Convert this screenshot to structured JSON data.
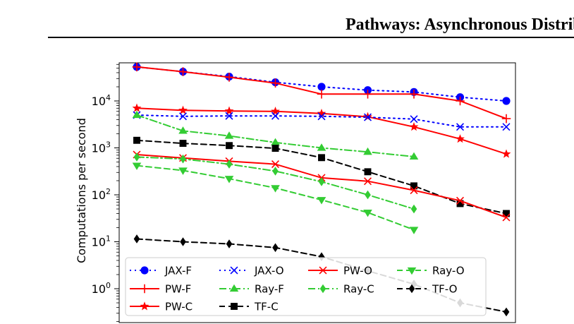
{
  "header": {
    "title": "Pathways: Asynchronous Distributed Dataflow for ML"
  },
  "chart_data": {
    "type": "line",
    "title": "",
    "xlabel": "",
    "ylabel": "Computations per second",
    "yscale": "log",
    "ylim": [
      0.3,
      100000
    ],
    "yticks": [
      {
        "value": 1,
        "base": "10",
        "exp": "0"
      },
      {
        "value": 10,
        "base": "10",
        "exp": "1"
      },
      {
        "value": 100,
        "base": "10",
        "exp": "2"
      },
      {
        "value": 1000,
        "base": "10",
        "exp": "3"
      },
      {
        "value": 10000,
        "base": "10",
        "exp": "4"
      }
    ],
    "grid": false,
    "legend_position": "bottom-left",
    "series": [
      {
        "name": "JAX-F",
        "color": "#0000ff",
        "dash": "dotted",
        "marker": "circle",
        "values": [
          53000,
          42000,
          33000,
          25000,
          20000,
          17000,
          15500,
          12000,
          10000
        ]
      },
      {
        "name": "PW-F",
        "color": "#ff0000",
        "dash": "solid",
        "marker": "plus",
        "values": [
          53000,
          42000,
          32000,
          24000,
          14000,
          14000,
          14000,
          10000,
          4200
        ]
      },
      {
        "name": "PW-C",
        "color": "#ff0000",
        "dash": "solid",
        "marker": "star",
        "values": [
          7000,
          6300,
          6100,
          6000,
          5400,
          4600,
          2800,
          1550,
          740
        ]
      },
      {
        "name": "JAX-O",
        "color": "#0000ff",
        "dash": "dotted",
        "marker": "x",
        "values": [
          5000,
          4700,
          4800,
          4800,
          4700,
          4500,
          4100,
          2800,
          2800
        ]
      },
      {
        "name": "Ray-F",
        "color": "#33cc33",
        "dash": "dashdot",
        "marker": "triangle-up",
        "values": [
          5000,
          2300,
          1800,
          1300,
          1000,
          820,
          650,
          null,
          null
        ]
      },
      {
        "name": "TF-C",
        "color": "#000000",
        "dash": "dashed",
        "marker": "square",
        "values": [
          1450,
          1250,
          1120,
          980,
          620,
          310,
          155,
          65,
          40
        ]
      },
      {
        "name": "PW-O",
        "color": "#ff0000",
        "dash": "solid",
        "marker": "x",
        "values": [
          720,
          610,
          520,
          450,
          230,
          195,
          125,
          75,
          33
        ]
      },
      {
        "name": "Ray-C",
        "color": "#33cc33",
        "dash": "dashdot",
        "marker": "diamond",
        "values": [
          640,
          580,
          450,
          320,
          190,
          100,
          50,
          null,
          null
        ]
      },
      {
        "name": "Ray-O",
        "color": "#33cc33",
        "dash": "dashed",
        "marker": "triangle-down",
        "values": [
          420,
          330,
          220,
          140,
          78,
          42,
          18,
          null,
          null
        ]
      },
      {
        "name": "TF-O",
        "color": "#000000",
        "dash": "dashed",
        "marker": "diamond",
        "values": [
          11.5,
          10,
          9,
          7.5,
          4.8,
          2.4,
          1.25,
          0.5,
          0.32
        ]
      }
    ],
    "legend_layout": [
      [
        "JAX-F",
        "JAX-O",
        "PW-O",
        "Ray-O"
      ],
      [
        "PW-F",
        "Ray-F",
        "Ray-C",
        "TF-O"
      ],
      [
        "PW-C",
        "TF-C"
      ]
    ]
  }
}
